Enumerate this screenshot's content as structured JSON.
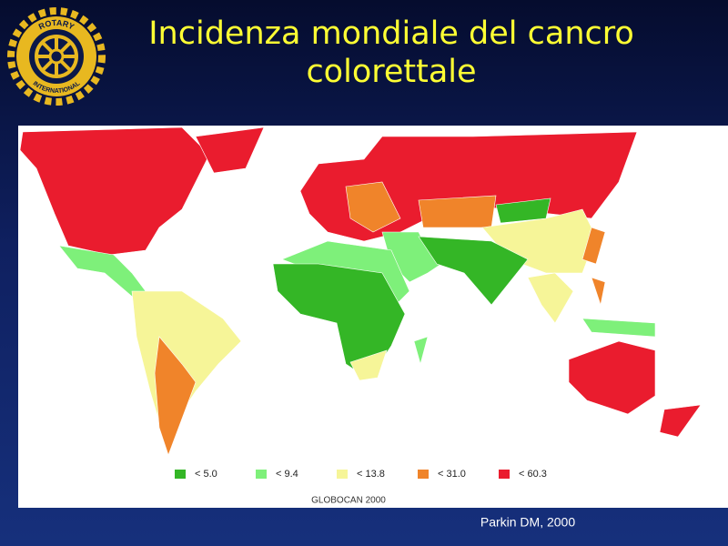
{
  "title": "Incidenza mondiale del cancro colorettale",
  "logo": {
    "top": "ROTARY",
    "bottom": "INTERNATIONAL"
  },
  "legend": [
    {
      "label": "< 5.0",
      "color": "#34b626"
    },
    {
      "label": "< 9.4",
      "color": "#7ef07a"
    },
    {
      "label": "< 13.8",
      "color": "#f6f598"
    },
    {
      "label": "< 31.0",
      "color": "#f0842a"
    },
    {
      "label": "< 60.3",
      "color": "#ea1c2e"
    }
  ],
  "map_caption": "GLOBOCAN 2000",
  "credit": "Parkin DM, 2000"
}
